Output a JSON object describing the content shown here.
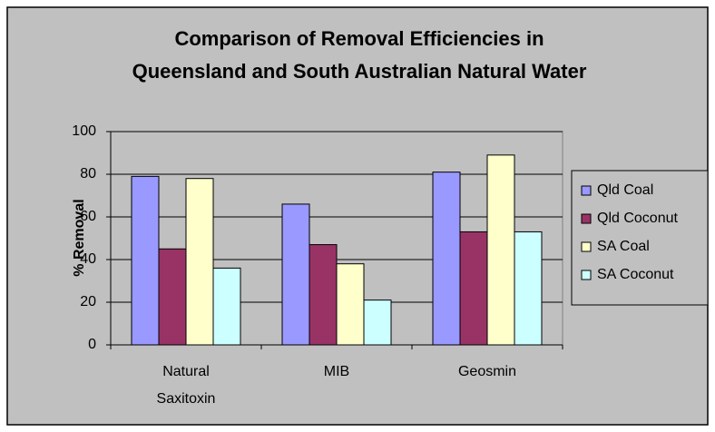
{
  "chart_data": {
    "type": "bar",
    "title": [
      "Comparison of Removal Efficiencies in",
      "Queensland and South Australian Natural Water"
    ],
    "y_label": "% Removal",
    "categories": [
      "Natural Saxitoxin",
      "MIB",
      "Geosmin"
    ],
    "series": [
      {
        "name": "Qld Coal",
        "color": "#9999ff",
        "values": [
          79,
          66,
          81
        ]
      },
      {
        "name": "Qld Coconut",
        "color": "#993366",
        "values": [
          45,
          47,
          53
        ]
      },
      {
        "name": "SA Coal",
        "color": "#ffffcc",
        "values": [
          78,
          38,
          89
        ]
      },
      {
        "name": "SA Coconut",
        "color": "#ccffff",
        "values": [
          36,
          21,
          53
        ]
      }
    ],
    "ylim": [
      0,
      100
    ],
    "yticks": [
      0,
      20,
      40,
      60,
      80,
      100
    ],
    "grid": true,
    "legend": "right"
  }
}
